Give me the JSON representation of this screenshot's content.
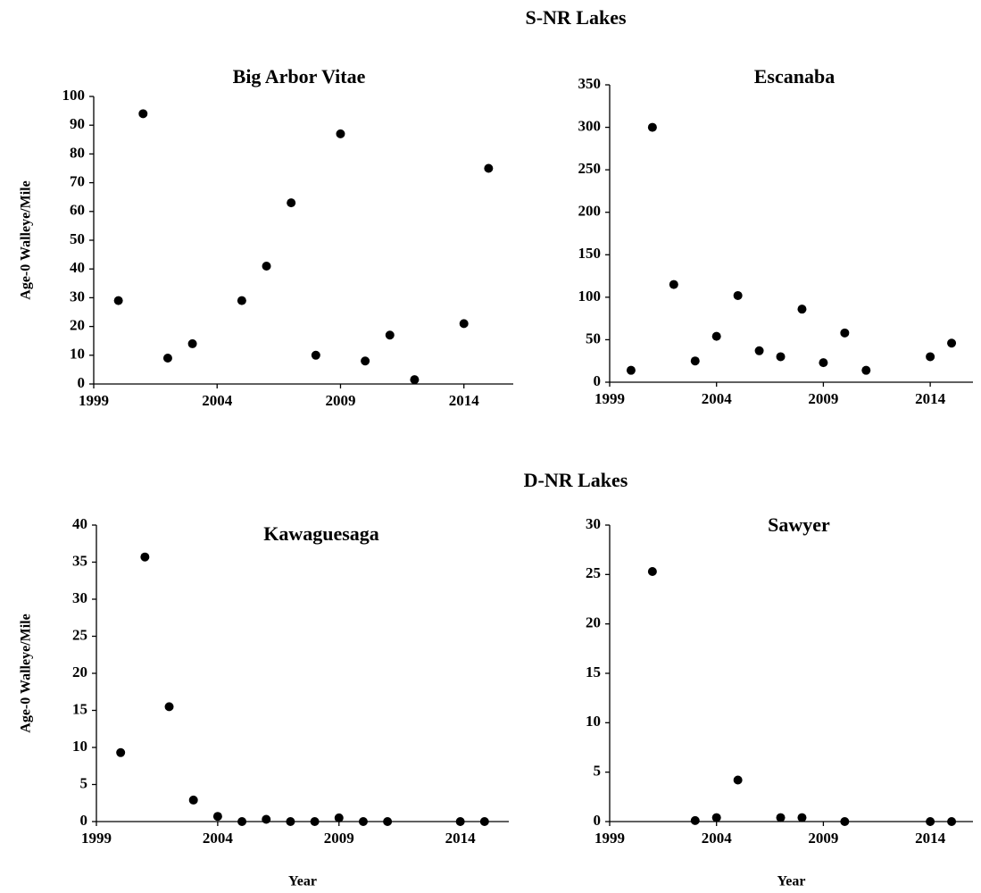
{
  "headings": [
    "S-NR Lakes",
    "D-NR Lakes"
  ],
  "chart_data": [
    {
      "type": "scatter",
      "title": "Big Arbor  Vitae",
      "ylabel": "Age-0 Walleye/Mile",
      "color": "#000000",
      "x": [
        2000,
        2001,
        2002,
        2003,
        2005,
        2006,
        2007,
        2008,
        2009,
        2010,
        2011,
        2012,
        2014,
        2015
      ],
      "values": [
        29,
        94,
        9,
        14,
        29,
        41,
        63,
        10,
        87,
        8,
        17,
        1.5,
        21,
        75
      ],
      "xlim": [
        1999,
        2016
      ],
      "xticks": [
        1999,
        2004,
        2009,
        2014
      ],
      "ylim": [
        0,
        100
      ],
      "yticks": [
        0,
        10,
        20,
        30,
        40,
        50,
        60,
        70,
        80,
        90,
        100
      ]
    },
    {
      "type": "scatter",
      "title": "Escanaba",
      "color": "#000000",
      "x": [
        2000,
        2001,
        2002,
        2003,
        2004,
        2005,
        2006,
        2007,
        2008,
        2009,
        2010,
        2011,
        2014,
        2015
      ],
      "values": [
        14,
        300,
        115,
        25,
        54,
        102,
        37,
        30,
        86,
        23,
        58,
        14,
        30,
        46
      ],
      "xlim": [
        1999,
        2016
      ],
      "xticks": [
        1999,
        2004,
        2009,
        2014
      ],
      "ylim": [
        0,
        350
      ],
      "yticks": [
        0,
        50,
        100,
        150,
        200,
        250,
        300,
        350
      ]
    },
    {
      "type": "scatter",
      "title": "Kawaguesaga",
      "ylabel": "Age-0 Walleye/Mile",
      "xlabel": "Year",
      "color": "#000000",
      "x": [
        2000,
        2001,
        2002,
        2003,
        2004,
        2005,
        2006,
        2007,
        2008,
        2009,
        2010,
        2011,
        2014,
        2015
      ],
      "values": [
        9.3,
        35.7,
        15.5,
        2.9,
        0.7,
        0,
        0.3,
        0,
        0,
        0.5,
        0,
        0,
        0,
        0
      ],
      "xlim": [
        1999,
        2016
      ],
      "xticks": [
        1999,
        2004,
        2009,
        2014
      ],
      "ylim": [
        0,
        40
      ],
      "yticks": [
        0,
        5,
        10,
        15,
        20,
        25,
        30,
        35,
        40
      ]
    },
    {
      "type": "scatter",
      "title": "Sawyer",
      "xlabel": "Year",
      "color": "#000000",
      "x": [
        2001,
        2003,
        2004,
        2005,
        2007,
        2008,
        2010,
        2014,
        2015
      ],
      "values": [
        25.3,
        0.1,
        0.4,
        4.2,
        0.4,
        0.4,
        0,
        0,
        0
      ],
      "xlim": [
        1999,
        2016
      ],
      "xticks": [
        1999,
        2004,
        2009,
        2014
      ],
      "ylim": [
        0,
        30
      ],
      "yticks": [
        0,
        5,
        10,
        15,
        20,
        25,
        30
      ]
    }
  ]
}
